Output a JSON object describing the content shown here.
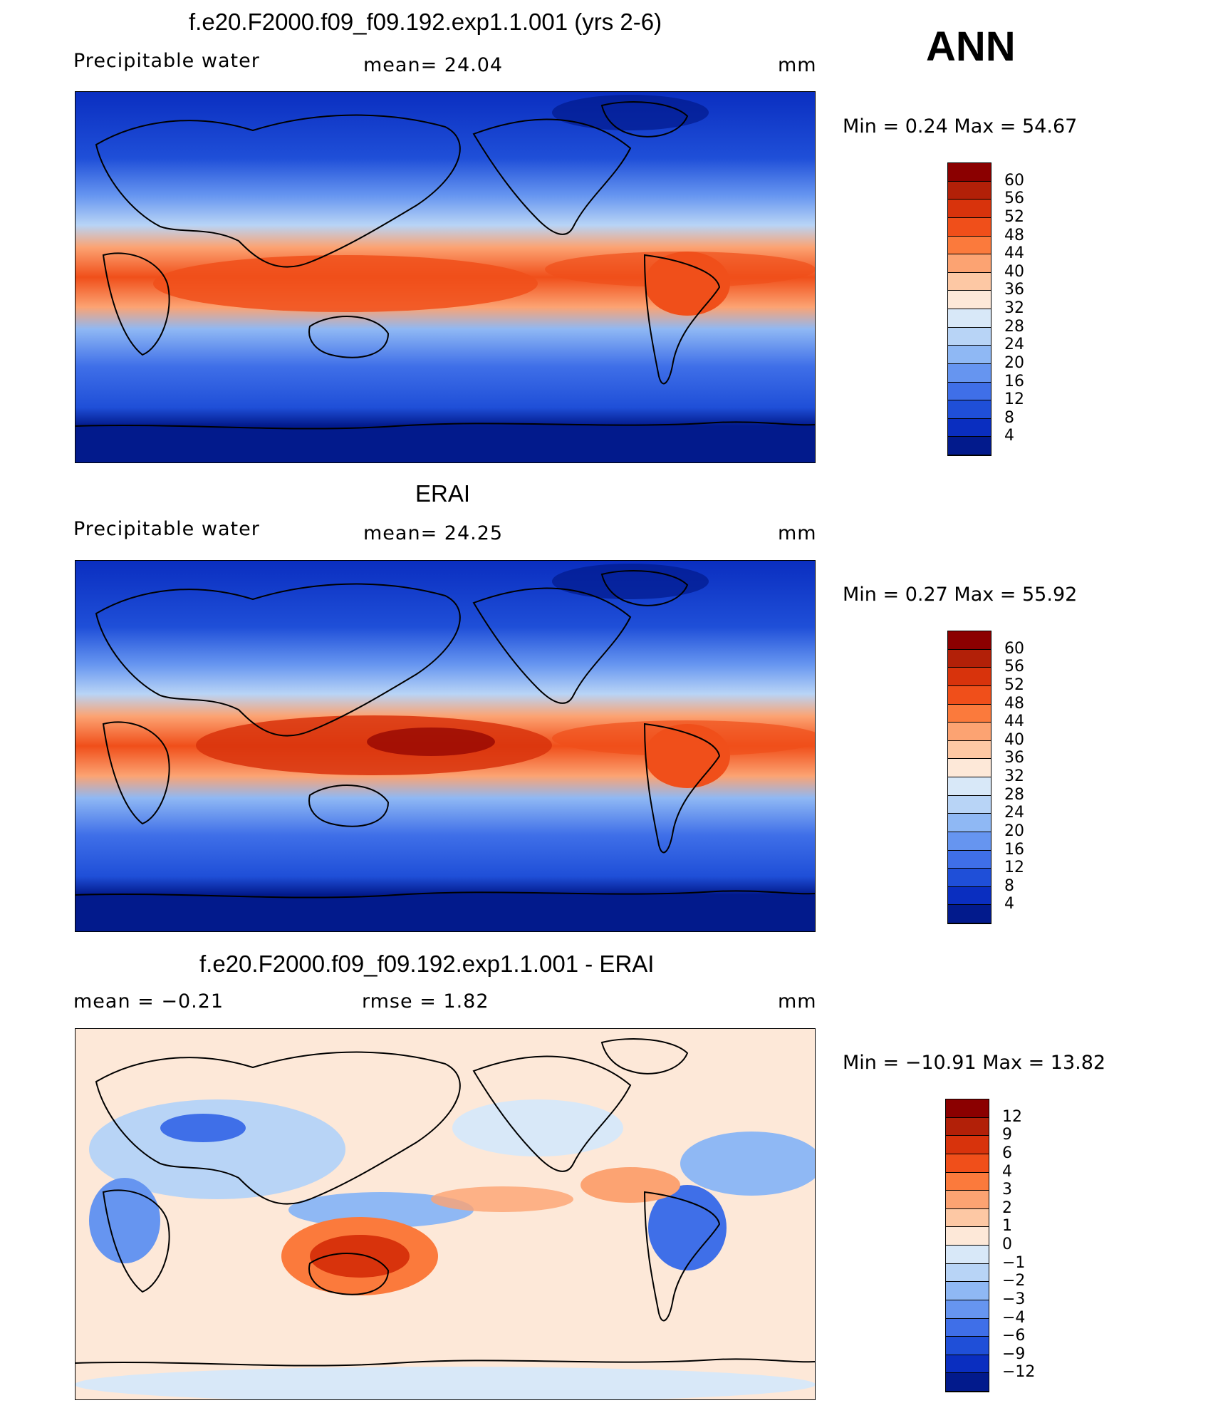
{
  "season": "ANN",
  "panels": [
    {
      "title": "f.e20.F2000.f09_f09.192.exp1.1.001 (yrs 2-6)",
      "left_label": "Precipitable  water",
      "center_label": "mean=   24.04",
      "units": "mm",
      "minmax": "Min  =     0.24  Max  =    54.67",
      "colorbar": {
        "labels": [
          "60",
          "56",
          "52",
          "48",
          "44",
          "40",
          "36",
          "32",
          "28",
          "24",
          "20",
          "16",
          "12",
          "8",
          "4"
        ],
        "colors": [
          "#8b0000",
          "#b22008",
          "#d8330c",
          "#f04f1a",
          "#fb7a3c",
          "#fca372",
          "#fdc8a4",
          "#fde8d8",
          "#d8e8f8",
          "#b8d4f6",
          "#8fb8f4",
          "#6695f0",
          "#3f6fe8",
          "#1f4fd8",
          "#0a2ec0",
          "#021a8c"
        ]
      },
      "chart_data": {
        "type": "heatmap",
        "field": "Precipitable water",
        "units": "mm",
        "mean": 24.04,
        "min": 0.24,
        "max": 54.67
      }
    },
    {
      "title": "ERAI",
      "left_label": "Precipitable  water",
      "center_label": "mean=   24.25",
      "units": "mm",
      "minmax": "Min  =     0.27  Max  =    55.92",
      "colorbar": {
        "labels": [
          "60",
          "56",
          "52",
          "48",
          "44",
          "40",
          "36",
          "32",
          "28",
          "24",
          "20",
          "16",
          "12",
          "8",
          "4"
        ],
        "colors": [
          "#8b0000",
          "#b22008",
          "#d8330c",
          "#f04f1a",
          "#fb7a3c",
          "#fca372",
          "#fdc8a4",
          "#fde8d8",
          "#d8e8f8",
          "#b8d4f6",
          "#8fb8f4",
          "#6695f0",
          "#3f6fe8",
          "#1f4fd8",
          "#0a2ec0",
          "#021a8c"
        ]
      },
      "chart_data": {
        "type": "heatmap",
        "field": "Precipitable water",
        "units": "mm",
        "mean": 24.25,
        "min": 0.27,
        "max": 55.92
      }
    },
    {
      "title": "f.e20.F2000.f09_f09.192.exp1.1.001 - ERAI",
      "left_label": "mean  =    −0.21",
      "center_label": "rmse  =     1.82",
      "units": "mm",
      "minmax": "Min  = −10.91  Max  =    13.82",
      "colorbar": {
        "labels": [
          "12",
          "9",
          "6",
          "4",
          "3",
          "2",
          "1",
          "0",
          "−1",
          "−2",
          "−3",
          "−4",
          "−6",
          "−9",
          "−12"
        ],
        "colors": [
          "#8b0000",
          "#b22008",
          "#d8330c",
          "#f04f1a",
          "#fb7a3c",
          "#fca372",
          "#fdc8a4",
          "#fde8d8",
          "#d8e8f8",
          "#b8d4f6",
          "#8fb8f4",
          "#6695f0",
          "#3f6fe8",
          "#1f4fd8",
          "#0a2ec0",
          "#021a8c"
        ]
      },
      "chart_data": {
        "type": "heatmap",
        "field": "difference",
        "units": "mm",
        "mean": -0.21,
        "rmse": 1.82,
        "min": -10.91,
        "max": 13.82
      }
    }
  ]
}
